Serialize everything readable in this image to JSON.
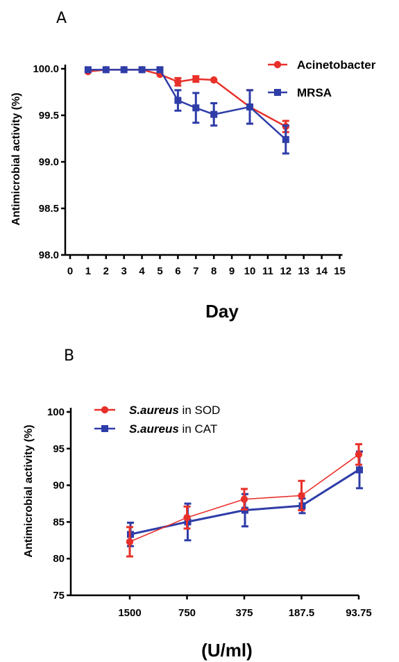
{
  "chart_data": [
    {
      "panel": "A",
      "type": "line",
      "xlabel": "Day",
      "ylabel": "Antimicrobial activity (%)",
      "xlim": [
        0,
        15
      ],
      "ylim": [
        98.0,
        100.0
      ],
      "xticks": [
        "0",
        "1",
        "2",
        "3",
        "4",
        "5",
        "6",
        "7",
        "8",
        "9",
        "10",
        "11",
        "12",
        "13",
        "14",
        "15"
      ],
      "yticks": [
        "98.0",
        "98.5",
        "99.0",
        "99.5",
        "100.0"
      ],
      "legend_position": "top-right",
      "series": [
        {
          "name": "Acinetobacter",
          "color": "#e8302a",
          "marker": "circle",
          "x": [
            1,
            2,
            3,
            4,
            5,
            6,
            7,
            8,
            10,
            12
          ],
          "y": [
            99.97,
            99.99,
            99.99,
            99.99,
            99.94,
            99.86,
            99.89,
            99.88,
            99.59,
            99.38
          ],
          "err": [
            0.0,
            0.0,
            0.0,
            0.0,
            0.0,
            0.04,
            0.03,
            0.0,
            0.18,
            0.06
          ]
        },
        {
          "name": "MRSA",
          "color": "#2e3da8",
          "marker": "square",
          "x": [
            1,
            2,
            3,
            4,
            5,
            6,
            7,
            8,
            10,
            12
          ],
          "y": [
            99.99,
            99.99,
            99.99,
            99.99,
            99.99,
            99.66,
            99.58,
            99.51,
            99.59,
            99.24
          ],
          "err": [
            0.0,
            0.0,
            0.0,
            0.0,
            0.0,
            0.11,
            0.16,
            0.12,
            0.18,
            0.15
          ]
        }
      ]
    },
    {
      "panel": "B",
      "type": "line",
      "xlabel": "(U/ml)",
      "ylabel": "Antimicrobial activity (%)",
      "categories": [
        "1500",
        "750",
        "375",
        "187.5",
        "93.75"
      ],
      "ylim": [
        75,
        100
      ],
      "yticks": [
        "75",
        "80",
        "85",
        "90",
        "95",
        "100"
      ],
      "legend_position": "top-left",
      "series": [
        {
          "name_italic": "S.aureus",
          "name_rest": " in SOD",
          "color": "#e8302a",
          "marker": "circle",
          "values": [
            82.3,
            85.6,
            88.1,
            88.6,
            94.2
          ],
          "err": [
            2.0,
            1.5,
            1.4,
            2.0,
            1.4
          ]
        },
        {
          "name_italic": "S.aureus",
          "name_rest": " in CAT",
          "color": "#2e3da8",
          "marker": "square",
          "values": [
            83.3,
            85.0,
            86.6,
            87.2,
            92.1
          ],
          "err": [
            1.6,
            2.5,
            2.2,
            1.0,
            2.5
          ]
        }
      ]
    }
  ]
}
